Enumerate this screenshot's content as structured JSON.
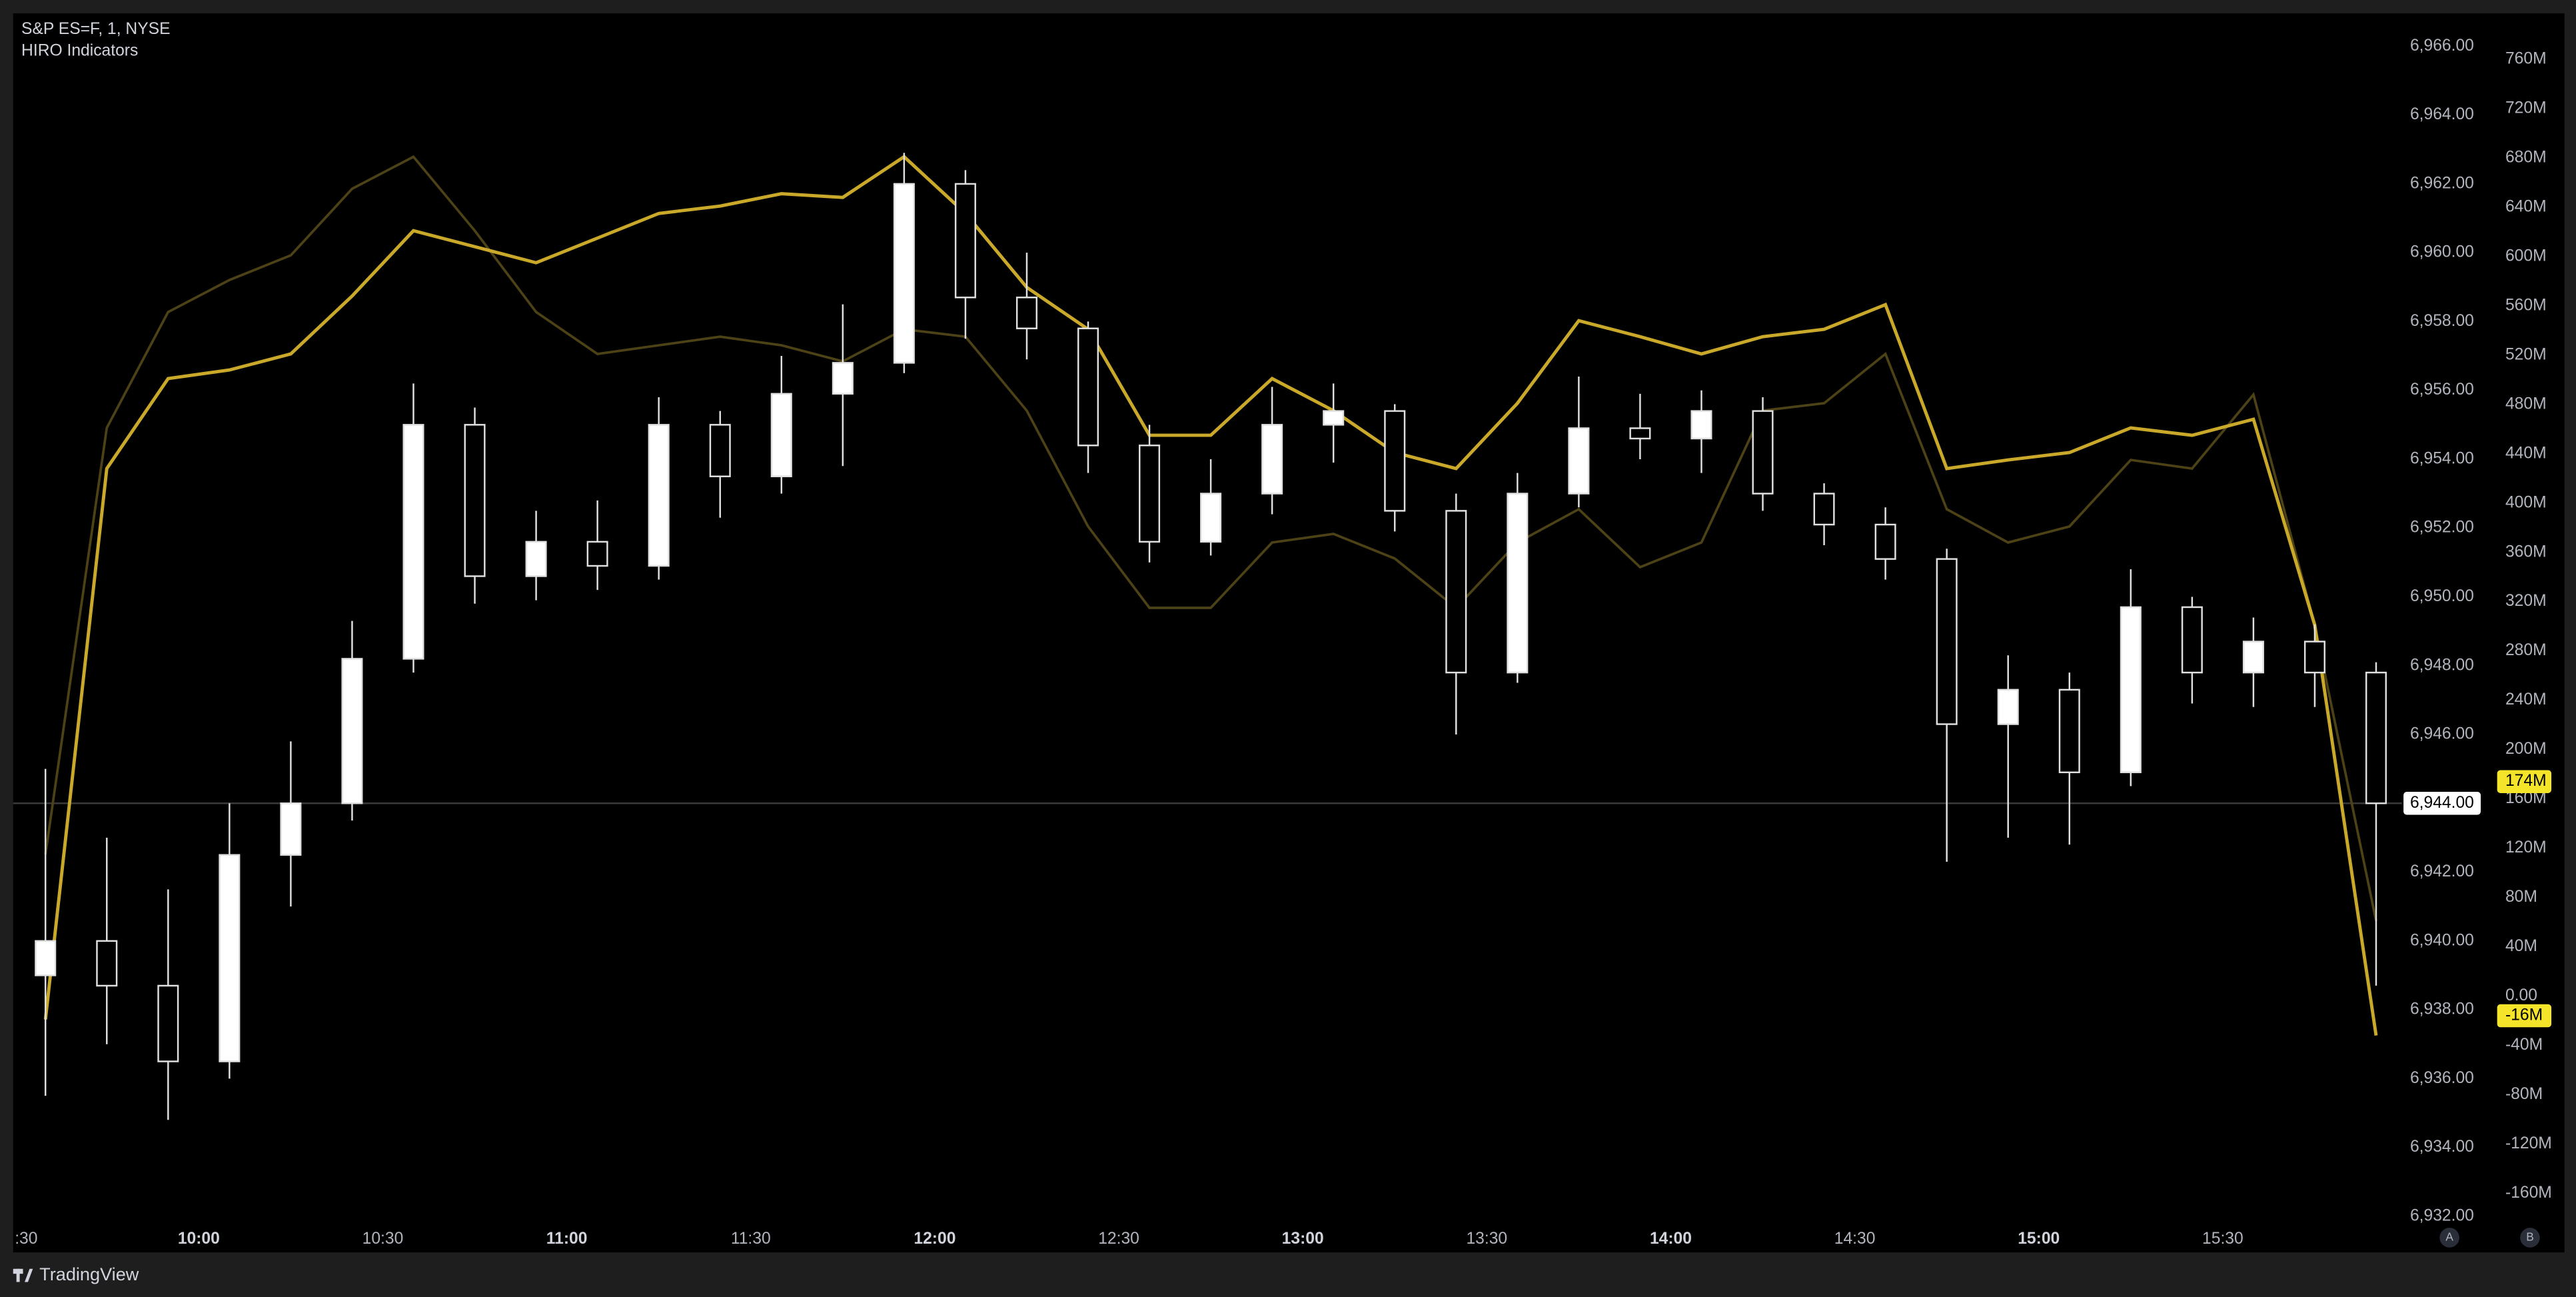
{
  "header": {
    "symbol": "S&P ES=F, 1, NYSE",
    "indicator": "HIRO Indicators"
  },
  "chart_data": {
    "type": "candlestick",
    "x": [
      "9:30",
      "9:40",
      "9:50",
      "10:00",
      "10:10",
      "10:20",
      "10:30",
      "10:40",
      "10:50",
      "11:00",
      "11:10",
      "11:20",
      "11:30",
      "11:40",
      "11:50",
      "12:00",
      "12:10",
      "12:20",
      "12:30",
      "12:40",
      "12:50",
      "13:00",
      "13:10",
      "13:20",
      "13:30",
      "13:40",
      "13:50",
      "14:00",
      "14:10",
      "14:20",
      "14:30",
      "14:40",
      "14:50",
      "15:00",
      "15:10",
      "15:20",
      "15:30",
      "15:40",
      "15:50"
    ],
    "open": [
      6939.0,
      6940.0,
      6938.7,
      6936.5,
      6942.5,
      6944.0,
      6948.2,
      6955.0,
      6950.6,
      6951.6,
      6950.9,
      6955.0,
      6953.5,
      6955.9,
      6956.8,
      6962.0,
      6958.7,
      6957.8,
      6954.4,
      6951.6,
      6953.0,
      6955.0,
      6955.4,
      6952.5,
      6947.8,
      6953.0,
      6954.9,
      6954.6,
      6955.4,
      6953.0,
      6952.1,
      6951.1,
      6946.3,
      6947.3,
      6944.9,
      6949.7,
      6947.8,
      6948.7,
      6947.8
    ],
    "high": [
      6945.0,
      6943.0,
      6941.5,
      6944.0,
      6945.8,
      6949.3,
      6956.2,
      6955.5,
      6952.5,
      6952.8,
      6955.8,
      6955.4,
      6957.0,
      6958.5,
      6962.9,
      6962.4,
      6960.0,
      6958.0,
      6955.0,
      6954.0,
      6956.1,
      6956.2,
      6955.6,
      6953.0,
      6953.6,
      6956.4,
      6955.9,
      6956.0,
      6955.8,
      6953.3,
      6952.6,
      6951.4,
      6948.3,
      6947.8,
      6950.8,
      6950.0,
      6949.4,
      6949.2,
      6948.1
    ],
    "low": [
      6935.5,
      6937.0,
      6934.8,
      6936.0,
      6941.0,
      6943.5,
      6947.8,
      6949.8,
      6949.9,
      6950.2,
      6950.5,
      6952.3,
      6953.0,
      6953.8,
      6956.5,
      6957.5,
      6956.9,
      6953.6,
      6951.0,
      6951.2,
      6952.4,
      6953.9,
      6951.9,
      6946.0,
      6947.5,
      6952.6,
      6954.0,
      6953.6,
      6952.5,
      6951.5,
      6950.5,
      6942.3,
      6943.0,
      6942.8,
      6944.5,
      6946.9,
      6946.8,
      6946.8,
      6938.7
    ],
    "close": [
      6940.0,
      6938.7,
      6936.5,
      6942.5,
      6944.0,
      6948.2,
      6955.0,
      6950.6,
      6951.6,
      6950.9,
      6955.0,
      6953.5,
      6955.9,
      6956.8,
      6962.0,
      6958.7,
      6957.8,
      6954.4,
      6951.6,
      6953.0,
      6955.0,
      6955.4,
      6952.5,
      6947.8,
      6953.0,
      6954.9,
      6954.6,
      6955.4,
      6953.0,
      6952.1,
      6951.1,
      6946.3,
      6947.3,
      6944.9,
      6949.7,
      6947.8,
      6948.7,
      6947.8,
      6944.0
    ],
    "up_color": "#ffffff",
    "down_color": "#000000",
    "wick_color": "#e0e0e0",
    "series": [
      {
        "color": "#c9a82a",
        "axis": "y2",
        "values": [
          -19,
          428,
          501,
          508,
          521,
          568,
          621,
          608,
          595,
          615,
          635,
          641,
          651,
          648,
          681,
          635,
          575,
          541,
          455,
          455,
          501,
          475,
          441,
          428,
          481,
          548,
          535,
          521,
          535,
          541,
          561,
          428,
          435,
          441,
          461,
          455,
          468,
          301,
          -32
        ]
      },
      {
        "color": "#4d4216",
        "axis": "y2",
        "values": [
          115,
          461,
          555,
          581,
          601,
          655,
          681,
          621,
          555,
          521,
          528,
          535,
          528,
          515,
          541,
          535,
          475,
          381,
          315,
          315,
          368,
          375,
          355,
          315,
          368,
          395,
          348,
          368,
          475,
          481,
          521,
          395,
          368,
          381,
          435,
          428,
          488,
          301,
          61
        ]
      }
    ],
    "ylim": [
      6932,
      6966
    ],
    "yticks": [
      {
        "value": 6932,
        "label": "6,932.00"
      },
      {
        "value": 6934,
        "label": "6,934.00"
      },
      {
        "value": 6936,
        "label": "6,936.00"
      },
      {
        "value": 6938,
        "label": "6,938.00"
      },
      {
        "value": 6940,
        "label": "6,940.00"
      },
      {
        "value": 6942,
        "label": "6,942.00"
      },
      {
        "value": 6944,
        "label": "6,944.00"
      },
      {
        "value": 6946,
        "label": "6,946.00"
      },
      {
        "value": 6948,
        "label": "6,948.00"
      },
      {
        "value": 6950,
        "label": "6,950.00"
      },
      {
        "value": 6952,
        "label": "6,952.00"
      },
      {
        "value": 6954,
        "label": "6,954.00"
      },
      {
        "value": 6956,
        "label": "6,956.00"
      },
      {
        "value": 6958,
        "label": "6,958.00"
      },
      {
        "value": 6960,
        "label": "6,960.00"
      },
      {
        "value": 6962,
        "label": "6,962.00"
      },
      {
        "value": 6964,
        "label": "6,964.00"
      },
      {
        "value": 6966,
        "label": "6,966.00"
      }
    ],
    "y2lim": [
      -160,
      760
    ],
    "y2ticks": [
      {
        "value": -160,
        "label": "-160M"
      },
      {
        "value": -120,
        "label": "-120M"
      },
      {
        "value": -80,
        "label": "-80M"
      },
      {
        "value": -40,
        "label": "-40M"
      },
      {
        "value": 0,
        "label": "0.00"
      },
      {
        "value": 40,
        "label": "40M"
      },
      {
        "value": 80,
        "label": "80M"
      },
      {
        "value": 120,
        "label": "120M"
      },
      {
        "value": 160,
        "label": "160M"
      },
      {
        "value": 200,
        "label": "200M"
      },
      {
        "value": 240,
        "label": "240M"
      },
      {
        "value": 280,
        "label": "280M"
      },
      {
        "value": 320,
        "label": "320M"
      },
      {
        "value": 360,
        "label": "360M"
      },
      {
        "value": 400,
        "label": "400M"
      },
      {
        "value": 440,
        "label": "440M"
      },
      {
        "value": 480,
        "label": "480M"
      },
      {
        "value": 520,
        "label": "520M"
      },
      {
        "value": 560,
        "label": "560M"
      },
      {
        "value": 600,
        "label": "600M"
      },
      {
        "value": 640,
        "label": "640M"
      },
      {
        "value": 680,
        "label": "680M"
      },
      {
        "value": 720,
        "label": "720M"
      },
      {
        "value": 760,
        "label": "760M"
      }
    ],
    "xticks": [
      {
        "value": "9:30",
        "label": ":30"
      },
      "10:00",
      "10:30",
      "11:00",
      "11:30",
      "12:00",
      "12:30",
      "13:00",
      "13:30",
      "14:00",
      "14:30",
      "15:00",
      "15:30"
    ],
    "last_price": {
      "value": 6944,
      "label": "6,944.00"
    },
    "y2_markers": [
      {
        "value": 174,
        "label": "174M"
      },
      {
        "value": -16,
        "label": "-16M"
      }
    ],
    "marker_color": "#f5e52a"
  },
  "buttons": [
    "A",
    "B"
  ],
  "footer": {
    "brand": "TradingView"
  }
}
